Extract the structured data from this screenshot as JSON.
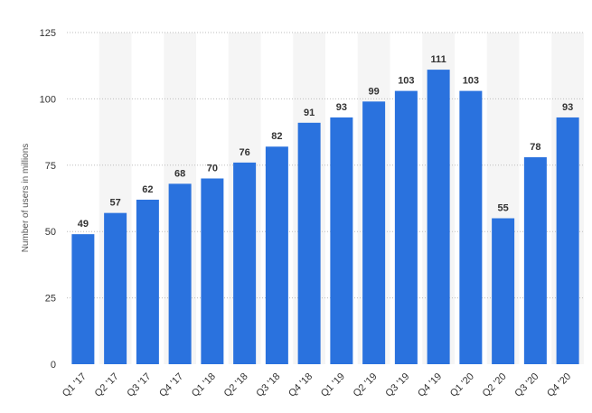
{
  "chart_data": {
    "type": "bar",
    "categories": [
      "Q1 '17",
      "Q2 '17",
      "Q3 '17",
      "Q4 '17",
      "Q1 '18",
      "Q2 '18",
      "Q3 '18",
      "Q4 '18",
      "Q1 '19",
      "Q2 '19",
      "Q3 '19",
      "Q4 '19",
      "Q1 '20",
      "Q2 '20",
      "Q3 '20",
      "Q4 '20"
    ],
    "values": [
      49,
      57,
      62,
      68,
      70,
      76,
      82,
      91,
      93,
      99,
      103,
      111,
      103,
      55,
      78,
      93
    ],
    "title": "",
    "xlabel": "",
    "ylabel": "Number of users in millions",
    "ylim": [
      0,
      125
    ],
    "yticks": [
      0,
      25,
      50,
      75,
      100,
      125
    ],
    "grid": "horizontal-dotted",
    "bar_color": "#2a72de",
    "band_color": "#f5f5f5",
    "data_labels": true
  }
}
